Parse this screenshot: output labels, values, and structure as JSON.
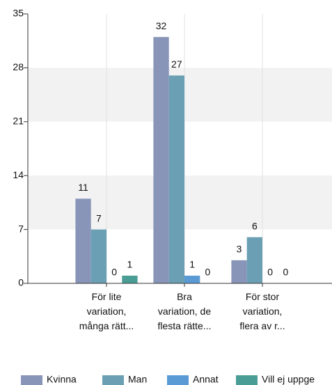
{
  "chart_data": {
    "type": "bar",
    "categories": [
      [
        "För lite",
        "variation,",
        "många rätt..."
      ],
      [
        "Bra",
        "variation, de",
        "flesta rätte..."
      ],
      [
        "För stor",
        "variation,",
        "flera av r..."
      ]
    ],
    "series": [
      {
        "name": "Kvinna",
        "color": "#8895b8",
        "values": [
          11,
          32,
          3
        ]
      },
      {
        "name": "Man",
        "color": "#6b9fb4",
        "values": [
          7,
          27,
          6
        ]
      },
      {
        "name": "Annat",
        "color": "#5b9bd5",
        "values": [
          0,
          1,
          0
        ]
      },
      {
        "name": "Vill ej uppge",
        "color": "#4a9d94",
        "values": [
          1,
          0,
          0
        ]
      }
    ],
    "ylim": [
      0,
      35
    ],
    "yticks": [
      0,
      7,
      14,
      21,
      28,
      35
    ],
    "grid": true,
    "legend": "bottom"
  }
}
